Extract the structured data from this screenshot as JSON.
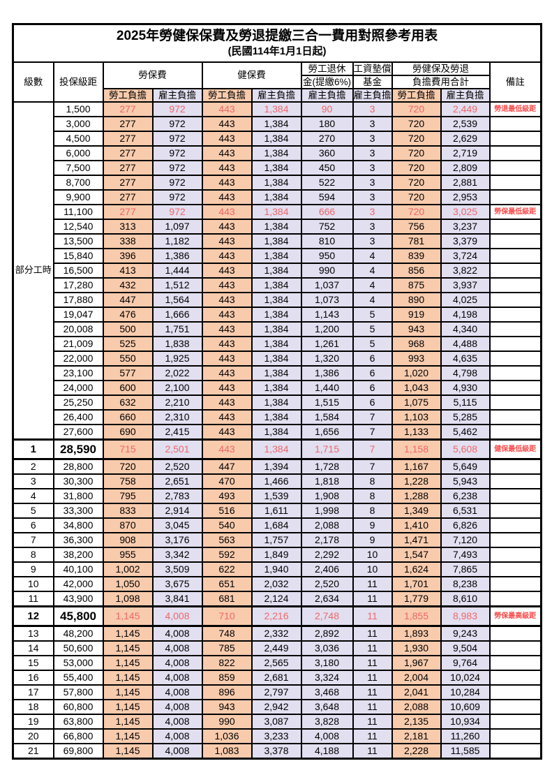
{
  "title": "2025年勞健保保費及勞退提繳三合一費用對照參考用表",
  "subtitle": "(民國114年1月1日起)",
  "header": {
    "level": "級數",
    "bracket": "投保級距",
    "labor_ins": "勞保費",
    "health_ins": "健保費",
    "pension_line1": "勞工退休",
    "pension_line2": "金(提繳6%)",
    "wage_fund_line1": "工資墊償",
    "wage_fund_line2": "基金",
    "total_line1": "勞健保及勞退",
    "total_line2": "負擔費用合計",
    "remark": "備註",
    "employee_burden": "勞工負擔",
    "employer_burden": "雇主負擔"
  },
  "part_time_label": "部分工時",
  "part_time_rowspan": 23,
  "colors": {
    "employee_bg": "#f8cbad",
    "employer_bg": "#e1dff0",
    "highlight_value": "#f0666a",
    "note_red": "#fb4b4b"
  },
  "columns_order": [
    "level",
    "bracket",
    "labor_emp",
    "labor_er",
    "health_emp",
    "health_er",
    "pension_er",
    "fund_er",
    "total_emp",
    "total_er",
    "note"
  ],
  "rows": [
    {
      "level": "",
      "bracket": "1,500",
      "labor_emp": "277",
      "labor_er": "972",
      "health_emp": "443",
      "health_er": "1,384",
      "pension_er": "90",
      "fund_er": "3",
      "total_emp": "720",
      "total_er": "2,449",
      "note": "勞退最低級距",
      "flags": "red"
    },
    {
      "level": "",
      "bracket": "3,000",
      "labor_emp": "277",
      "labor_er": "972",
      "health_emp": "443",
      "health_er": "1,384",
      "pension_er": "180",
      "fund_er": "3",
      "total_emp": "720",
      "total_er": "2,539",
      "note": "",
      "flags": ""
    },
    {
      "level": "",
      "bracket": "4,500",
      "labor_emp": "277",
      "labor_er": "972",
      "health_emp": "443",
      "health_er": "1,384",
      "pension_er": "270",
      "fund_er": "3",
      "total_emp": "720",
      "total_er": "2,629",
      "note": "",
      "flags": ""
    },
    {
      "level": "",
      "bracket": "6,000",
      "labor_emp": "277",
      "labor_er": "972",
      "health_emp": "443",
      "health_er": "1,384",
      "pension_er": "360",
      "fund_er": "3",
      "total_emp": "720",
      "total_er": "2,719",
      "note": "",
      "flags": ""
    },
    {
      "level": "",
      "bracket": "7,500",
      "labor_emp": "277",
      "labor_er": "972",
      "health_emp": "443",
      "health_er": "1,384",
      "pension_er": "450",
      "fund_er": "3",
      "total_emp": "720",
      "total_er": "2,809",
      "note": "",
      "flags": ""
    },
    {
      "level": "",
      "bracket": "8,700",
      "labor_emp": "277",
      "labor_er": "972",
      "health_emp": "443",
      "health_er": "1,384",
      "pension_er": "522",
      "fund_er": "3",
      "total_emp": "720",
      "total_er": "2,881",
      "note": "",
      "flags": ""
    },
    {
      "level": "",
      "bracket": "9,900",
      "labor_emp": "277",
      "labor_er": "972",
      "health_emp": "443",
      "health_er": "1,384",
      "pension_er": "594",
      "fund_er": "3",
      "total_emp": "720",
      "total_er": "2,953",
      "note": "",
      "flags": ""
    },
    {
      "level": "",
      "bracket": "11,100",
      "labor_emp": "277",
      "labor_er": "972",
      "health_emp": "443",
      "health_er": "1,384",
      "pension_er": "666",
      "fund_er": "3",
      "total_emp": "720",
      "total_er": "3,025",
      "note": "勞保最低級距",
      "flags": "red"
    },
    {
      "level": "",
      "bracket": "12,540",
      "labor_emp": "313",
      "labor_er": "1,097",
      "health_emp": "443",
      "health_er": "1,384",
      "pension_er": "752",
      "fund_er": "3",
      "total_emp": "756",
      "total_er": "3,237",
      "note": "",
      "flags": ""
    },
    {
      "level": "",
      "bracket": "13,500",
      "labor_emp": "338",
      "labor_er": "1,182",
      "health_emp": "443",
      "health_er": "1,384",
      "pension_er": "810",
      "fund_er": "3",
      "total_emp": "781",
      "total_er": "3,379",
      "note": "",
      "flags": ""
    },
    {
      "level": "",
      "bracket": "15,840",
      "labor_emp": "396",
      "labor_er": "1,386",
      "health_emp": "443",
      "health_er": "1,384",
      "pension_er": "950",
      "fund_er": "4",
      "total_emp": "839",
      "total_er": "3,724",
      "note": "",
      "flags": ""
    },
    {
      "level": "",
      "bracket": "16,500",
      "labor_emp": "413",
      "labor_er": "1,444",
      "health_emp": "443",
      "health_er": "1,384",
      "pension_er": "990",
      "fund_er": "4",
      "total_emp": "856",
      "total_er": "3,822",
      "note": "",
      "flags": ""
    },
    {
      "level": "",
      "bracket": "17,280",
      "labor_emp": "432",
      "labor_er": "1,512",
      "health_emp": "443",
      "health_er": "1,384",
      "pension_er": "1,037",
      "fund_er": "4",
      "total_emp": "875",
      "total_er": "3,937",
      "note": "",
      "flags": ""
    },
    {
      "level": "",
      "bracket": "17,880",
      "labor_emp": "447",
      "labor_er": "1,564",
      "health_emp": "443",
      "health_er": "1,384",
      "pension_er": "1,073",
      "fund_er": "4",
      "total_emp": "890",
      "total_er": "4,025",
      "note": "",
      "flags": ""
    },
    {
      "level": "",
      "bracket": "19,047",
      "labor_emp": "476",
      "labor_er": "1,666",
      "health_emp": "443",
      "health_er": "1,384",
      "pension_er": "1,143",
      "fund_er": "5",
      "total_emp": "919",
      "total_er": "4,198",
      "note": "",
      "flags": ""
    },
    {
      "level": "",
      "bracket": "20,008",
      "labor_emp": "500",
      "labor_er": "1,751",
      "health_emp": "443",
      "health_er": "1,384",
      "pension_er": "1,200",
      "fund_er": "5",
      "total_emp": "943",
      "total_er": "4,340",
      "note": "",
      "flags": ""
    },
    {
      "level": "",
      "bracket": "21,009",
      "labor_emp": "525",
      "labor_er": "1,838",
      "health_emp": "443",
      "health_er": "1,384",
      "pension_er": "1,261",
      "fund_er": "5",
      "total_emp": "968",
      "total_er": "4,488",
      "note": "",
      "flags": ""
    },
    {
      "level": "",
      "bracket": "22,000",
      "labor_emp": "550",
      "labor_er": "1,925",
      "health_emp": "443",
      "health_er": "1,384",
      "pension_er": "1,320",
      "fund_er": "6",
      "total_emp": "993",
      "total_er": "4,635",
      "note": "",
      "flags": ""
    },
    {
      "level": "",
      "bracket": "23,100",
      "labor_emp": "577",
      "labor_er": "2,022",
      "health_emp": "443",
      "health_er": "1,384",
      "pension_er": "1,386",
      "fund_er": "6",
      "total_emp": "1,020",
      "total_er": "4,798",
      "note": "",
      "flags": ""
    },
    {
      "level": "",
      "bracket": "24,000",
      "labor_emp": "600",
      "labor_er": "2,100",
      "health_emp": "443",
      "health_er": "1,384",
      "pension_er": "1,440",
      "fund_er": "6",
      "total_emp": "1,043",
      "total_er": "4,930",
      "note": "",
      "flags": ""
    },
    {
      "level": "",
      "bracket": "25,250",
      "labor_emp": "632",
      "labor_er": "2,210",
      "health_emp": "443",
      "health_er": "1,384",
      "pension_er": "1,515",
      "fund_er": "6",
      "total_emp": "1,075",
      "total_er": "5,115",
      "note": "",
      "flags": ""
    },
    {
      "level": "",
      "bracket": "26,400",
      "labor_emp": "660",
      "labor_er": "2,310",
      "health_emp": "443",
      "health_er": "1,384",
      "pension_er": "1,584",
      "fund_er": "7",
      "total_emp": "1,103",
      "total_er": "5,285",
      "note": "",
      "flags": ""
    },
    {
      "level": "",
      "bracket": "27,600",
      "labor_emp": "690",
      "labor_er": "2,415",
      "health_emp": "443",
      "health_er": "1,384",
      "pension_er": "1,656",
      "fund_er": "7",
      "total_emp": "1,133",
      "total_er": "5,462",
      "note": "",
      "flags": ""
    },
    {
      "level": "1",
      "bracket": "28,590",
      "labor_emp": "715",
      "labor_er": "2,501",
      "health_emp": "443",
      "health_er": "1,384",
      "pension_er": "1,715",
      "fund_er": "7",
      "total_emp": "1,158",
      "total_er": "5,608",
      "note": "健保最低級距",
      "flags": "red emph"
    },
    {
      "level": "2",
      "bracket": "28,800",
      "labor_emp": "720",
      "labor_er": "2,520",
      "health_emp": "447",
      "health_er": "1,394",
      "pension_er": "1,728",
      "fund_er": "7",
      "total_emp": "1,167",
      "total_er": "5,649",
      "note": "",
      "flags": ""
    },
    {
      "level": "3",
      "bracket": "30,300",
      "labor_emp": "758",
      "labor_er": "2,651",
      "health_emp": "470",
      "health_er": "1,466",
      "pension_er": "1,818",
      "fund_er": "8",
      "total_emp": "1,228",
      "total_er": "5,943",
      "note": "",
      "flags": ""
    },
    {
      "level": "4",
      "bracket": "31,800",
      "labor_emp": "795",
      "labor_er": "2,783",
      "health_emp": "493",
      "health_er": "1,539",
      "pension_er": "1,908",
      "fund_er": "8",
      "total_emp": "1,288",
      "total_er": "6,238",
      "note": "",
      "flags": ""
    },
    {
      "level": "5",
      "bracket": "33,300",
      "labor_emp": "833",
      "labor_er": "2,914",
      "health_emp": "516",
      "health_er": "1,611",
      "pension_er": "1,998",
      "fund_er": "8",
      "total_emp": "1,349",
      "total_er": "6,531",
      "note": "",
      "flags": ""
    },
    {
      "level": "6",
      "bracket": "34,800",
      "labor_emp": "870",
      "labor_er": "3,045",
      "health_emp": "540",
      "health_er": "1,684",
      "pension_er": "2,088",
      "fund_er": "9",
      "total_emp": "1,410",
      "total_er": "6,826",
      "note": "",
      "flags": ""
    },
    {
      "level": "7",
      "bracket": "36,300",
      "labor_emp": "908",
      "labor_er": "3,176",
      "health_emp": "563",
      "health_er": "1,757",
      "pension_er": "2,178",
      "fund_er": "9",
      "total_emp": "1,471",
      "total_er": "7,120",
      "note": "",
      "flags": ""
    },
    {
      "level": "8",
      "bracket": "38,200",
      "labor_emp": "955",
      "labor_er": "3,342",
      "health_emp": "592",
      "health_er": "1,849",
      "pension_er": "2,292",
      "fund_er": "10",
      "total_emp": "1,547",
      "total_er": "7,493",
      "note": "",
      "flags": ""
    },
    {
      "level": "9",
      "bracket": "40,100",
      "labor_emp": "1,002",
      "labor_er": "3,509",
      "health_emp": "622",
      "health_er": "1,940",
      "pension_er": "2,406",
      "fund_er": "10",
      "total_emp": "1,624",
      "total_er": "7,865",
      "note": "",
      "flags": ""
    },
    {
      "level": "10",
      "bracket": "42,000",
      "labor_emp": "1,050",
      "labor_er": "3,675",
      "health_emp": "651",
      "health_er": "2,032",
      "pension_er": "2,520",
      "fund_er": "11",
      "total_emp": "1,701",
      "total_er": "8,238",
      "note": "",
      "flags": ""
    },
    {
      "level": "11",
      "bracket": "43,900",
      "labor_emp": "1,098",
      "labor_er": "3,841",
      "health_emp": "681",
      "health_er": "2,124",
      "pension_er": "2,634",
      "fund_er": "11",
      "total_emp": "1,779",
      "total_er": "8,610",
      "note": "",
      "flags": ""
    },
    {
      "level": "12",
      "bracket": "45,800",
      "labor_emp": "1,145",
      "labor_er": "4,008",
      "health_emp": "710",
      "health_er": "2,216",
      "pension_er": "2,748",
      "fund_er": "11",
      "total_emp": "1,855",
      "total_er": "8,983",
      "note": "勞保最高級距",
      "flags": "red emph"
    },
    {
      "level": "13",
      "bracket": "48,200",
      "labor_emp": "1,145",
      "labor_er": "4,008",
      "health_emp": "748",
      "health_er": "2,332",
      "pension_er": "2,892",
      "fund_er": "11",
      "total_emp": "1,893",
      "total_er": "9,243",
      "note": "",
      "flags": ""
    },
    {
      "level": "14",
      "bracket": "50,600",
      "labor_emp": "1,145",
      "labor_er": "4,008",
      "health_emp": "785",
      "health_er": "2,449",
      "pension_er": "3,036",
      "fund_er": "11",
      "total_emp": "1,930",
      "total_er": "9,504",
      "note": "",
      "flags": ""
    },
    {
      "level": "15",
      "bracket": "53,000",
      "labor_emp": "1,145",
      "labor_er": "4,008",
      "health_emp": "822",
      "health_er": "2,565",
      "pension_er": "3,180",
      "fund_er": "11",
      "total_emp": "1,967",
      "total_er": "9,764",
      "note": "",
      "flags": ""
    },
    {
      "level": "16",
      "bracket": "55,400",
      "labor_emp": "1,145",
      "labor_er": "4,008",
      "health_emp": "859",
      "health_er": "2,681",
      "pension_er": "3,324",
      "fund_er": "11",
      "total_emp": "2,004",
      "total_er": "10,024",
      "note": "",
      "flags": ""
    },
    {
      "level": "17",
      "bracket": "57,800",
      "labor_emp": "1,145",
      "labor_er": "4,008",
      "health_emp": "896",
      "health_er": "2,797",
      "pension_er": "3,468",
      "fund_er": "11",
      "total_emp": "2,041",
      "total_er": "10,284",
      "note": "",
      "flags": ""
    },
    {
      "level": "18",
      "bracket": "60,800",
      "labor_emp": "1,145",
      "labor_er": "4,008",
      "health_emp": "943",
      "health_er": "2,942",
      "pension_er": "3,648",
      "fund_er": "11",
      "total_emp": "2,088",
      "total_er": "10,609",
      "note": "",
      "flags": ""
    },
    {
      "level": "19",
      "bracket": "63,800",
      "labor_emp": "1,145",
      "labor_er": "4,008",
      "health_emp": "990",
      "health_er": "3,087",
      "pension_er": "3,828",
      "fund_er": "11",
      "total_emp": "2,135",
      "total_er": "10,934",
      "note": "",
      "flags": ""
    },
    {
      "level": "20",
      "bracket": "66,800",
      "labor_emp": "1,145",
      "labor_er": "4,008",
      "health_emp": "1,036",
      "health_er": "3,233",
      "pension_er": "4,008",
      "fund_er": "11",
      "total_emp": "2,181",
      "total_er": "11,260",
      "note": "",
      "flags": ""
    },
    {
      "level": "21",
      "bracket": "69,800",
      "labor_emp": "1,145",
      "labor_er": "4,008",
      "health_emp": "1,083",
      "health_er": "3,378",
      "pension_er": "4,188",
      "fund_er": "11",
      "total_emp": "2,228",
      "total_er": "11,585",
      "note": "",
      "flags": ""
    }
  ]
}
